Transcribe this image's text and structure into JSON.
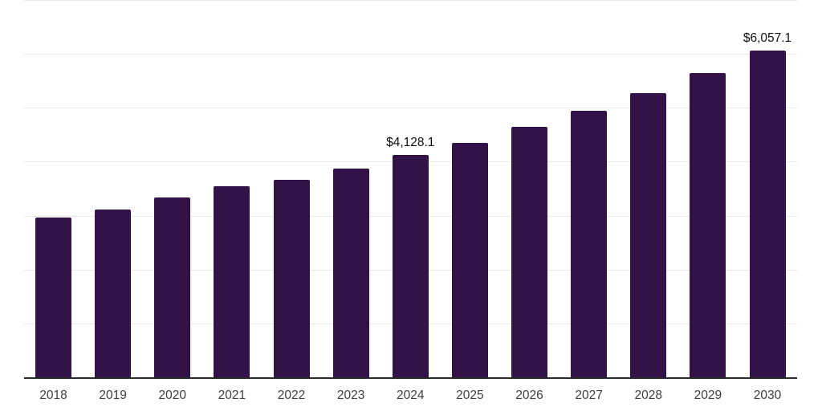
{
  "chart": {
    "background": "#ffffff",
    "bar_color": "#331247",
    "grid_color": "#e8e8e8",
    "axis_line_color": "#2b2b2b",
    "tick_label_color": "#3d3d3d",
    "data_label_color": "#111111"
  },
  "chart_data": {
    "type": "bar",
    "title": "",
    "xlabel": "",
    "ylabel": "",
    "categories": [
      "2018",
      "2019",
      "2020",
      "2021",
      "2022",
      "2023",
      "2024",
      "2025",
      "2026",
      "2027",
      "2028",
      "2029",
      "2030"
    ],
    "values": [
      2970,
      3120,
      3330,
      3540,
      3670,
      3865,
      4128.1,
      4345,
      4650,
      4940,
      5270,
      5640,
      6057.1
    ],
    "labeled_points": [
      {
        "category": "2024",
        "label": "$4,128.1"
      },
      {
        "category": "2030",
        "label": "$6,057.1"
      }
    ],
    "ylim": [
      0,
      7000
    ],
    "gridline_step": 1000,
    "grid": "horizontal",
    "legend": "none",
    "y_axis_ticks_visible": false
  }
}
